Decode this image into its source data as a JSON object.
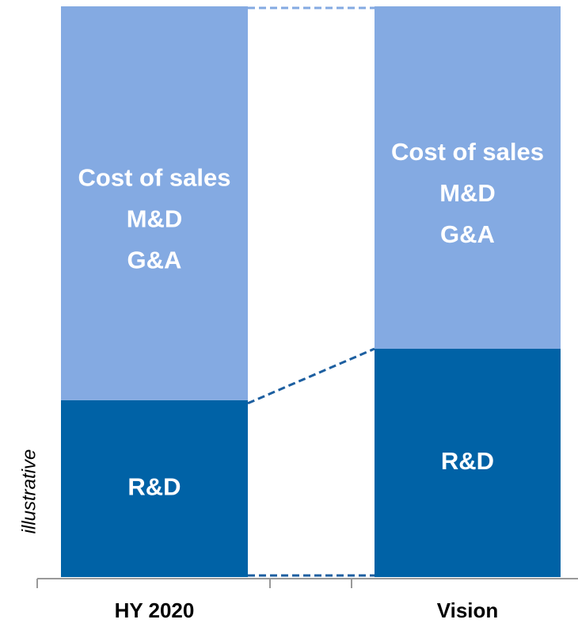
{
  "chart_data": {
    "type": "stacked_bar",
    "ylabel": "illustrative",
    "categories": [
      "HY 2020",
      "Vision"
    ],
    "series": [
      {
        "name": "R&D",
        "color": "#0062a6",
        "values": [
          31,
          40
        ]
      },
      {
        "name": [
          "Cost of sales",
          "M&D",
          "G&A"
        ],
        "color": "#84aae2",
        "values": [
          69,
          60
        ]
      }
    ]
  }
}
